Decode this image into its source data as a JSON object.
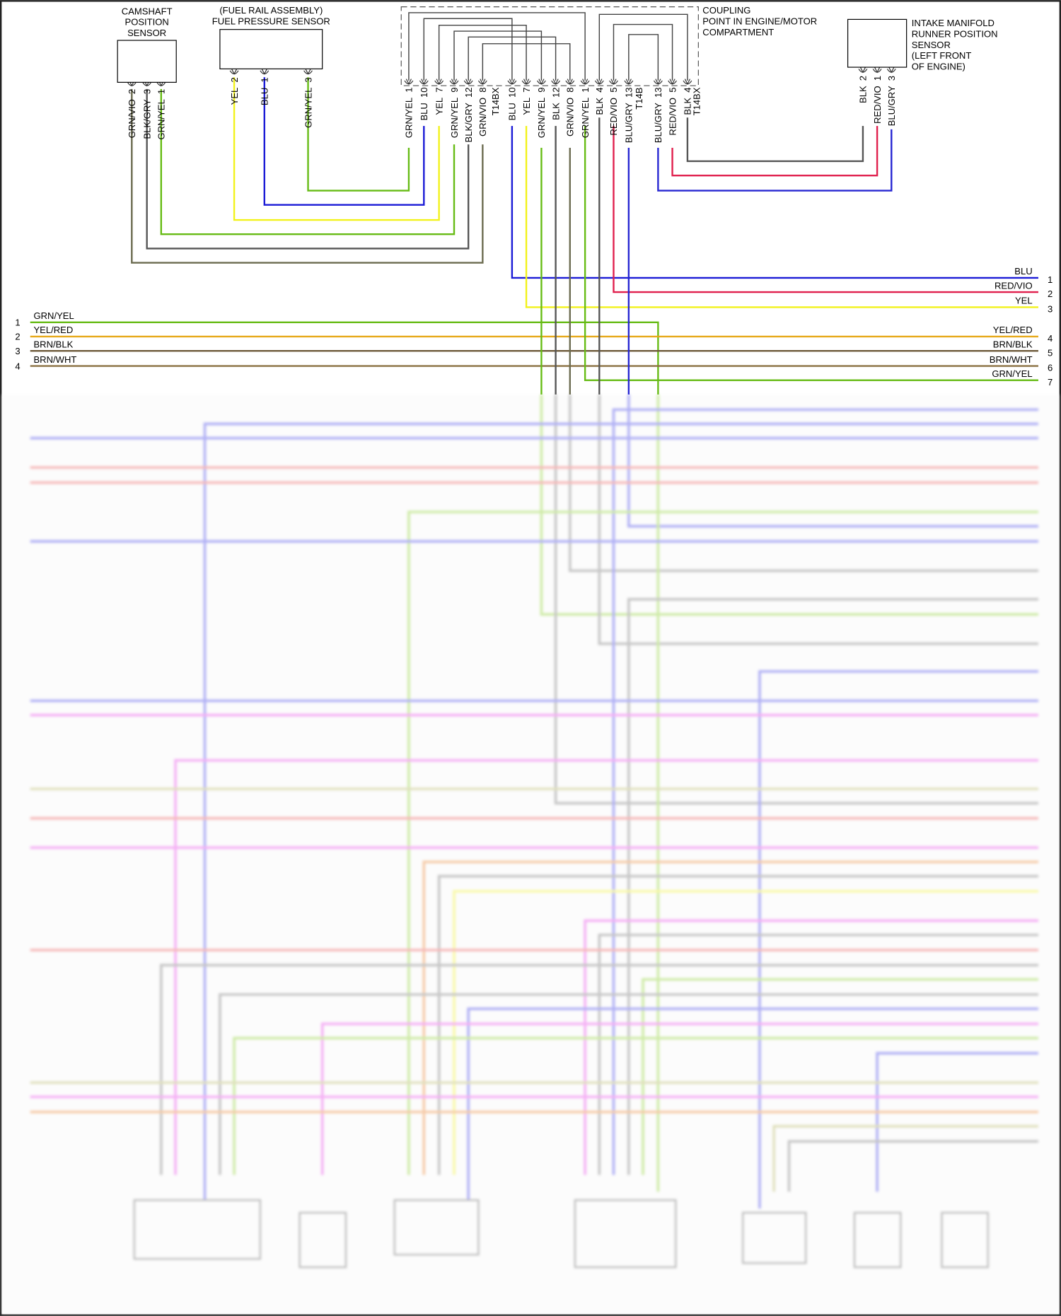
{
  "components": {
    "camshaft": {
      "title": [
        "CAMSHAFT",
        "POSITION",
        "SENSOR"
      ]
    },
    "fuel_pressure": {
      "title": [
        "(FUEL RAIL ASSEMBLY)",
        "FUEL PRESSURE SENSOR"
      ]
    },
    "coupling": {
      "title": [
        "COUPLING",
        "POINT IN ENGINE/MOTOR",
        "COMPARTMENT"
      ]
    },
    "intake_runner": {
      "title": [
        "INTAKE MANIFOLD",
        "RUNNER POSITION",
        "SENSOR",
        "(LEFT FRONT",
        "OF ENGINE)"
      ]
    }
  },
  "camshaft_pins": [
    {
      "num": "2",
      "code": "GRN/VIO"
    },
    {
      "num": "3",
      "code": "BLK/GRY"
    },
    {
      "num": "1",
      "code": "GRN/YEL"
    }
  ],
  "fuel_pressure_pins": [
    {
      "num": "2",
      "code": "YEL"
    },
    {
      "num": "1",
      "code": "BLU"
    },
    {
      "num": "3",
      "code": "GRN/YEL"
    }
  ],
  "intake_runner_pins": [
    {
      "num": "2",
      "code": "BLK"
    },
    {
      "num": "1",
      "code": "RED/VIO"
    },
    {
      "num": "3",
      "code": "BLU/GRY"
    }
  ],
  "coupling_pins": [
    {
      "num": "1",
      "code": "GRN/YEL"
    },
    {
      "num": "10",
      "code": "BLU"
    },
    {
      "num": "7",
      "code": "YEL"
    },
    {
      "num": "9",
      "code": "GRN/YEL"
    },
    {
      "num": "12",
      "code": "BLK/GRY"
    },
    {
      "num": "8",
      "code": "GRN/VIO"
    },
    {
      "num": "",
      "code": "T14BX"
    },
    {
      "num": "10",
      "code": "BLU"
    },
    {
      "num": "7",
      "code": "YEL"
    },
    {
      "num": "9",
      "code": "GRN/YEL"
    },
    {
      "num": "12",
      "code": "BLK"
    },
    {
      "num": "8",
      "code": "GRN/VIO"
    },
    {
      "num": "1",
      "code": "GRN/YEL"
    },
    {
      "num": "4",
      "code": "BLK"
    },
    {
      "num": "5",
      "code": "RED/VIO"
    },
    {
      "num": "13",
      "code": "BLU/GRY"
    },
    {
      "num": "",
      "code": "T14B"
    },
    {
      "num": "13",
      "code": "BLU/GRY"
    },
    {
      "num": "5",
      "code": "RED/VIO"
    },
    {
      "num": "4",
      "code": "BLK"
    },
    {
      "num": "",
      "code": "T14BX"
    }
  ],
  "left_terminals": [
    {
      "num": "1",
      "code": "GRN/YEL"
    },
    {
      "num": "2",
      "code": "YEL/RED"
    },
    {
      "num": "3",
      "code": "BRN/BLK"
    },
    {
      "num": "4",
      "code": "BRN/WHT"
    }
  ],
  "right_terminals": [
    {
      "num": "1",
      "code": "BLU"
    },
    {
      "num": "2",
      "code": "RED/VIO"
    },
    {
      "num": "3",
      "code": "YEL"
    },
    {
      "num": "4",
      "code": "YEL/RED"
    },
    {
      "num": "5",
      "code": "BRN/BLK"
    },
    {
      "num": "6",
      "code": "BRN/WHT"
    },
    {
      "num": "7",
      "code": "GRN/YEL"
    }
  ],
  "wire_colors": {
    "GRN/YEL": "#66bb14",
    "BLU": "#1a1ad6",
    "YEL": "#f2f21a",
    "BLK/GRY": "#555555",
    "GRN/VIO": "#6b6b4f",
    "BLK": "#555555",
    "RED/VIO": "#e01e4c",
    "BLU/GRY": "#2626d2",
    "YEL/RED": "#e6a817",
    "BRN/BLK": "#6e5a3a",
    "BRN/WHT": "#8a7042"
  },
  "lower_wire_colors": {
    "blue": "#7070ee",
    "pink": "#ee70ee",
    "red": "#f08080",
    "green": "#a8dc60",
    "gray": "#999999",
    "yellow": "#f5f560",
    "olive": "#c8c88a",
    "orange": "#f0a060"
  }
}
